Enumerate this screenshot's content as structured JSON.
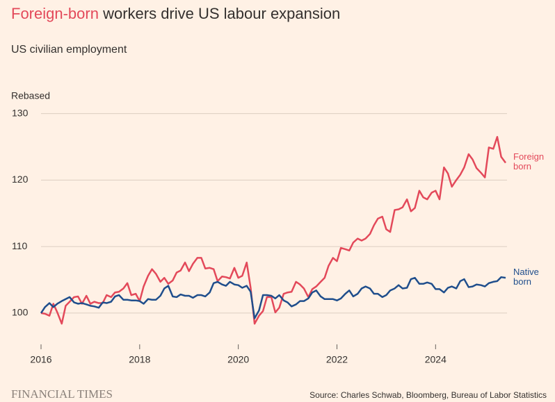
{
  "chart_data": {
    "type": "line",
    "title": {
      "highlight": "Foreign-born",
      "rest": "workers drive US labour expansion"
    },
    "subtitle": "US civilian employment",
    "ylabel": "Rebased",
    "source": "Source: Charles Schwab, Bloomberg, Bureau of Labor Statistics",
    "brand": "FINANCIAL TIMES",
    "xlim": [
      2016,
      2025.42
    ],
    "ylim": [
      95.5,
      131
    ],
    "xticks": [
      2016,
      2018,
      2020,
      2022,
      2024
    ],
    "yticks": [
      100,
      110,
      120,
      130
    ],
    "grid": true,
    "x": [
      2016,
      2016.08,
      2016.17,
      2016.25,
      2016.33,
      2016.42,
      2016.5,
      2016.58,
      2016.67,
      2016.75,
      2016.83,
      2016.92,
      2017,
      2017.08,
      2017.17,
      2017.25,
      2017.33,
      2017.42,
      2017.5,
      2017.58,
      2017.67,
      2017.75,
      2017.83,
      2017.92,
      2018,
      2018.08,
      2018.17,
      2018.25,
      2018.33,
      2018.42,
      2018.5,
      2018.58,
      2018.67,
      2018.75,
      2018.83,
      2018.92,
      2019,
      2019.08,
      2019.17,
      2019.25,
      2019.33,
      2019.42,
      2019.5,
      2019.58,
      2019.67,
      2019.75,
      2019.83,
      2019.92,
      2020,
      2020.08,
      2020.17,
      2020.25,
      2020.33,
      2020.42,
      2020.5,
      2020.58,
      2020.67,
      2020.75,
      2020.83,
      2020.92,
      2021,
      2021.08,
      2021.17,
      2021.25,
      2021.33,
      2021.42,
      2021.5,
      2021.58,
      2021.67,
      2021.75,
      2021.83,
      2021.92,
      2022,
      2022.08,
      2022.17,
      2022.25,
      2022.33,
      2022.42,
      2022.5,
      2022.58,
      2022.67,
      2022.75,
      2022.83,
      2022.92,
      2023,
      2023.08,
      2023.17,
      2023.25,
      2023.33,
      2023.42,
      2023.5,
      2023.58,
      2023.67,
      2023.75,
      2023.83,
      2023.92,
      2024,
      2024.08,
      2024.17,
      2024.25,
      2024.33,
      2024.42,
      2024.5,
      2024.58,
      2024.67,
      2024.75,
      2024.83,
      2024.92,
      2025,
      2025.08,
      2025.17,
      2025.25,
      2025.33,
      2025.42
    ],
    "series": [
      {
        "name": "Foreign born",
        "color": "#e3495a",
        "values": [
          100,
          99.9,
          99.6,
          101.4,
          100.1,
          98.4,
          101.1,
          101.7,
          102.4,
          102.5,
          101.4,
          102.6,
          101.4,
          101.7,
          101.5,
          101.5,
          102.7,
          102.4,
          103.1,
          103.2,
          103.7,
          104.5,
          102.7,
          102.9,
          101.8,
          104.0,
          105.6,
          106.6,
          105.9,
          104.7,
          105.3,
          104.4,
          104.9,
          106.1,
          106.4,
          107.6,
          106.3,
          107.4,
          108.3,
          108.3,
          106.7,
          106.8,
          106.6,
          104.8,
          105.5,
          105.4,
          105.2,
          106.8,
          105.3,
          105.6,
          107.6,
          103.8,
          98.4,
          99.6,
          100.3,
          102.4,
          102.4,
          100.1,
          100.8,
          102.9,
          103.1,
          103.2,
          104.7,
          104.3,
          103.7,
          102.4,
          103.6,
          104.0,
          104.7,
          105.3,
          107.1,
          108.3,
          107.8,
          109.8,
          109.6,
          109.4,
          110.6,
          111.2,
          110.9,
          111.2,
          111.9,
          113.2,
          114.2,
          114.5,
          112.6,
          112.2,
          115.5,
          115.6,
          115.9,
          117.1,
          115.3,
          115.8,
          118.4,
          117.4,
          117.1,
          118.1,
          118.4,
          117.1,
          121.9,
          121.0,
          119.0,
          120.0,
          120.8,
          121.9,
          123.9,
          123.1,
          121.8,
          121.1,
          120.4,
          124.9,
          124.7,
          126.5,
          123.5,
          122.6
        ]
      },
      {
        "name": "Native born",
        "color": "#1f4e8c",
        "values": [
          100,
          100.9,
          101.5,
          100.9,
          101.4,
          101.8,
          102.1,
          102.4,
          101.6,
          101.4,
          101.5,
          101.3,
          101.1,
          101.0,
          100.8,
          101.6,
          101.5,
          101.7,
          102.5,
          102.7,
          102.0,
          102.0,
          101.9,
          101.9,
          101.8,
          101.4,
          102.1,
          102.0,
          102.0,
          102.6,
          103.7,
          104.1,
          102.5,
          102.4,
          102.8,
          102.6,
          102.6,
          102.3,
          102.7,
          102.7,
          102.5,
          103.1,
          104.5,
          104.7,
          104.3,
          104.1,
          104.7,
          104.3,
          104.2,
          103.8,
          104.1,
          103.2,
          99.2,
          100.4,
          102.7,
          102.7,
          102.6,
          102.2,
          102.7,
          101.9,
          101.6,
          101.0,
          101.3,
          101.8,
          101.8,
          102.2,
          103.1,
          103.4,
          102.5,
          102.1,
          102.1,
          102.1,
          101.9,
          102.2,
          102.9,
          103.4,
          102.5,
          102.9,
          103.7,
          104.0,
          103.7,
          102.9,
          102.9,
          102.4,
          102.7,
          103.4,
          103.7,
          104.2,
          103.7,
          103.8,
          105.1,
          105.3,
          104.4,
          104.4,
          104.6,
          104.4,
          103.6,
          103.6,
          103.1,
          103.8,
          104.0,
          103.7,
          104.8,
          105.1,
          103.9,
          104.0,
          104.3,
          104.2,
          104.0,
          104.5,
          104.7,
          104.8,
          105.4,
          105.3
        ]
      }
    ]
  }
}
